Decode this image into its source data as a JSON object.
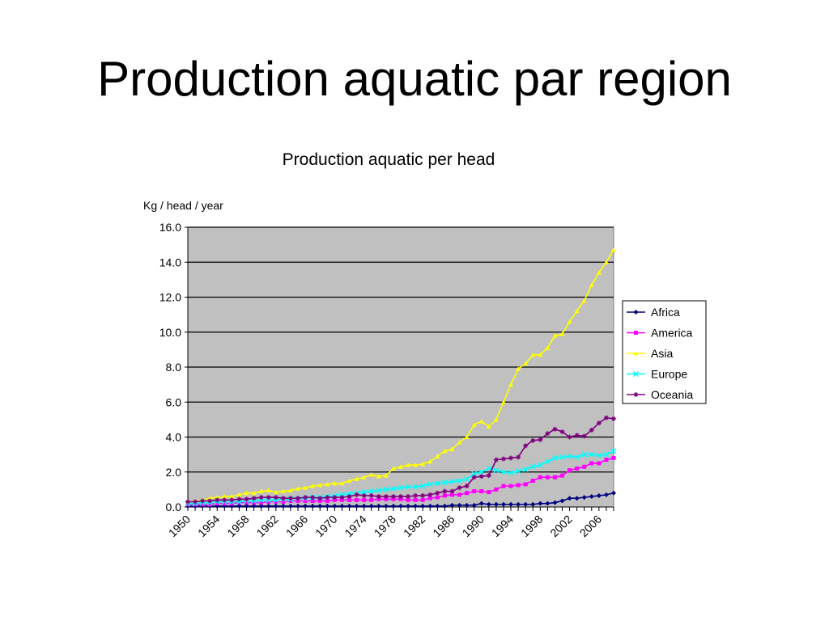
{
  "slide": {
    "title": "Production aquatic par region"
  },
  "chart_data": {
    "type": "line",
    "title": "Production aquatic per head",
    "ylabel": "Kg / head / year",
    "xlabel": "",
    "ylim": [
      0,
      16
    ],
    "yticks": [
      "0.0",
      "2.0",
      "4.0",
      "6.0",
      "8.0",
      "10.0",
      "12.0",
      "14.0",
      "16.0"
    ],
    "x": [
      1950,
      1951,
      1952,
      1953,
      1954,
      1955,
      1956,
      1957,
      1958,
      1959,
      1960,
      1961,
      1962,
      1963,
      1964,
      1965,
      1966,
      1967,
      1968,
      1969,
      1970,
      1971,
      1972,
      1973,
      1974,
      1975,
      1976,
      1977,
      1978,
      1979,
      1980,
      1981,
      1982,
      1983,
      1984,
      1985,
      1986,
      1987,
      1988,
      1989,
      1990,
      1991,
      1992,
      1993,
      1994,
      1995,
      1996,
      1997,
      1998,
      1999,
      2000,
      2001,
      2002,
      2003,
      2004,
      2005,
      2006,
      2007,
      2008
    ],
    "xtick_labels": [
      "1950",
      "1954",
      "1958",
      "1962",
      "1966",
      "1970",
      "1974",
      "1978",
      "1982",
      "1986",
      "1990",
      "1994",
      "1998",
      "2002",
      "2006"
    ],
    "grid": true,
    "plot_background": "#c0c0c0",
    "legend_position": "right",
    "series": [
      {
        "name": "Africa",
        "color": "#000080",
        "marker": "diamond",
        "values": [
          0.05,
          0.05,
          0.05,
          0.05,
          0.05,
          0.05,
          0.05,
          0.05,
          0.05,
          0.05,
          0.05,
          0.05,
          0.05,
          0.05,
          0.05,
          0.05,
          0.05,
          0.05,
          0.05,
          0.05,
          0.05,
          0.05,
          0.05,
          0.05,
          0.05,
          0.05,
          0.05,
          0.05,
          0.05,
          0.05,
          0.05,
          0.05,
          0.05,
          0.05,
          0.05,
          0.05,
          0.1,
          0.1,
          0.1,
          0.1,
          0.2,
          0.15,
          0.15,
          0.15,
          0.15,
          0.15,
          0.15,
          0.15,
          0.2,
          0.2,
          0.25,
          0.35,
          0.5,
          0.5,
          0.55,
          0.6,
          0.65,
          0.7,
          0.8
        ]
      },
      {
        "name": "America",
        "color": "#ff00ff",
        "marker": "square",
        "values": [
          0.15,
          0.15,
          0.15,
          0.15,
          0.2,
          0.2,
          0.2,
          0.25,
          0.25,
          0.25,
          0.25,
          0.3,
          0.3,
          0.3,
          0.35,
          0.35,
          0.35,
          0.35,
          0.35,
          0.35,
          0.4,
          0.4,
          0.4,
          0.4,
          0.4,
          0.4,
          0.45,
          0.45,
          0.45,
          0.45,
          0.4,
          0.4,
          0.4,
          0.5,
          0.55,
          0.65,
          0.7,
          0.7,
          0.8,
          0.9,
          0.9,
          0.85,
          1.0,
          1.2,
          1.2,
          1.25,
          1.3,
          1.5,
          1.7,
          1.7,
          1.7,
          1.8,
          2.1,
          2.2,
          2.3,
          2.5,
          2.5,
          2.7,
          2.8
        ]
      },
      {
        "name": "Asia",
        "color": "#ffff00",
        "marker": "triangle",
        "values": [
          0.3,
          0.35,
          0.4,
          0.5,
          0.55,
          0.6,
          0.6,
          0.7,
          0.8,
          0.8,
          0.9,
          0.95,
          0.85,
          0.9,
          0.95,
          1.05,
          1.1,
          1.2,
          1.25,
          1.3,
          1.35,
          1.35,
          1.5,
          1.6,
          1.7,
          1.85,
          1.75,
          1.8,
          2.2,
          2.3,
          2.4,
          2.4,
          2.45,
          2.6,
          2.9,
          3.2,
          3.3,
          3.7,
          4.0,
          4.7,
          4.9,
          4.6,
          5.0,
          6.0,
          7.0,
          7.9,
          8.2,
          8.7,
          8.7,
          9.1,
          9.8,
          9.9,
          10.6,
          11.2,
          11.8,
          12.7,
          13.4,
          14.0,
          14.7
        ]
      },
      {
        "name": "Europe",
        "color": "#00ffff",
        "marker": "cross",
        "values": [
          0.2,
          0.2,
          0.25,
          0.25,
          0.3,
          0.3,
          0.3,
          0.3,
          0.35,
          0.35,
          0.4,
          0.4,
          0.4,
          0.45,
          0.45,
          0.5,
          0.5,
          0.55,
          0.55,
          0.6,
          0.65,
          0.7,
          0.75,
          0.8,
          0.85,
          0.9,
          0.95,
          1.0,
          1.05,
          1.1,
          1.15,
          1.15,
          1.2,
          1.3,
          1.35,
          1.4,
          1.45,
          1.5,
          1.6,
          1.9,
          2.0,
          2.2,
          2.1,
          2.0,
          1.95,
          2.05,
          2.15,
          2.3,
          2.4,
          2.6,
          2.8,
          2.85,
          2.9,
          2.85,
          3.0,
          3.0,
          2.95,
          3.0,
          3.2
        ]
      },
      {
        "name": "Oceania",
        "color": "#800080",
        "marker": "star",
        "values": [
          0.3,
          0.3,
          0.35,
          0.35,
          0.4,
          0.4,
          0.4,
          0.45,
          0.45,
          0.5,
          0.55,
          0.55,
          0.55,
          0.5,
          0.5,
          0.5,
          0.55,
          0.55,
          0.5,
          0.55,
          0.55,
          0.55,
          0.6,
          0.7,
          0.65,
          0.65,
          0.6,
          0.6,
          0.6,
          0.6,
          0.6,
          0.65,
          0.65,
          0.7,
          0.8,
          0.9,
          0.9,
          1.1,
          1.2,
          1.7,
          1.75,
          1.8,
          2.7,
          2.75,
          2.8,
          2.85,
          3.5,
          3.8,
          3.85,
          4.2,
          4.45,
          4.3,
          4.0,
          4.1,
          4.05,
          4.4,
          4.8,
          5.1,
          5.05
        ]
      }
    ]
  }
}
